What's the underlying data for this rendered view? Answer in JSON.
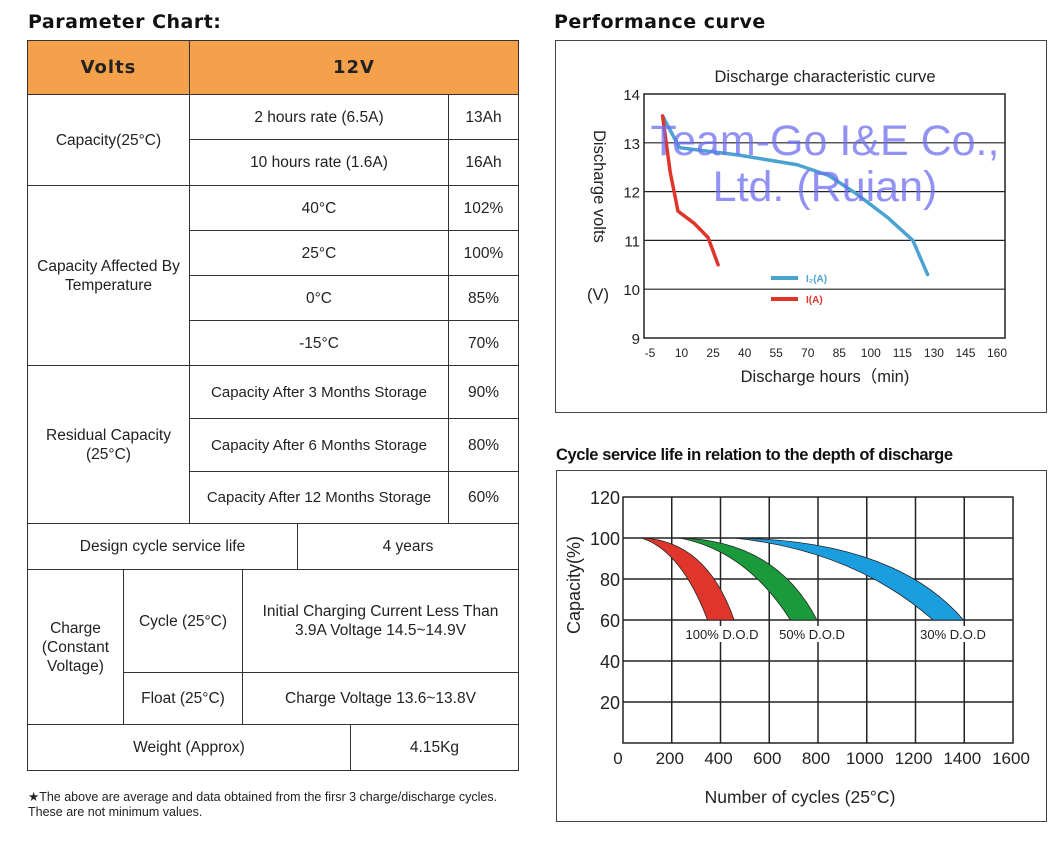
{
  "parameter_chart": {
    "title": "Parameter Chart:",
    "header": {
      "label": "Volts",
      "value": "12V"
    },
    "capacity": {
      "label": "Capacity(25°C)",
      "rows": [
        {
          "name": "2 hours rate (6.5A)",
          "value": "13Ah"
        },
        {
          "name": "10 hours rate (1.6A)",
          "value": "16Ah"
        }
      ]
    },
    "temperature": {
      "label": "Capacity Affected By Temperature",
      "rows": [
        {
          "name": "40°C",
          "value": "102%"
        },
        {
          "name": "25°C",
          "value": "100%"
        },
        {
          "name": "0°C",
          "value": "85%"
        },
        {
          "name": "-15°C",
          "value": "70%"
        }
      ]
    },
    "residual": {
      "label": "Residual Capacity (25°C)",
      "rows": [
        {
          "name": "Capacity After 3 Months Storage",
          "value": "90%"
        },
        {
          "name": "Capacity After 6 Months Storage",
          "value": "80%"
        },
        {
          "name": "Capacity After 12 Months Storage",
          "value": "60%"
        }
      ]
    },
    "design_life": {
      "label": "Design cycle service life",
      "value": "4 years"
    },
    "charge": {
      "label": "Charge (Constant Voltage)",
      "cycle": {
        "label": "Cycle (25°C)",
        "value": "Initial Charging Current Less Than 3.9A Voltage 14.5~14.9V"
      },
      "float": {
        "label": "Float (25°C)",
        "value": "Charge Voltage 13.6~13.8V"
      }
    },
    "weight": {
      "label": "Weight (Approx)",
      "value": "4.15Kg"
    },
    "footnote": "★The above are average and data obtained from the firsr 3 charge/discharge cycles. These are not minimum values."
  },
  "watermark": "Team-Go I&E Co., Ltd. (Ruian)",
  "performance": {
    "title": "Performance curve"
  },
  "cycle_section": {
    "title": "Cycle service life in relation to the depth of discharge"
  },
  "colors": {
    "header": "#f5a04a",
    "blue": "#4aa3d0",
    "red": "#e0352b",
    "green": "#1a9a3a",
    "cyan": "#1a9ee0"
  },
  "chart_data": [
    {
      "type": "line",
      "title": "Discharge characteristic curve",
      "xlabel": "Discharge hours（min)",
      "ylabel": "Discharge volts",
      "yunit": "(V)",
      "xlim": [
        -5,
        160
      ],
      "ylim": [
        9,
        14
      ],
      "xticks": [
        "-5",
        "10",
        "25",
        "40",
        "55",
        "70",
        "85",
        "100",
        "115",
        "130",
        "145",
        "160"
      ],
      "yticks": [
        "14",
        "13",
        "12",
        "11",
        "10",
        "9"
      ],
      "grid": "horizontal",
      "legend": "center",
      "series": [
        {
          "name": "I₂(A)",
          "color": "#4aa3d0",
          "x": [
            1,
            9,
            37,
            65,
            80,
            93,
            108,
            120,
            127
          ],
          "y": [
            13.55,
            12.9,
            12.75,
            12.55,
            12.33,
            11.96,
            11.47,
            11.0,
            10.3
          ]
        },
        {
          "name": "I(A)",
          "color": "#e0352b",
          "x": [
            1,
            4.6,
            8.3,
            16,
            22.6,
            27.4
          ],
          "y": [
            13.55,
            12.4,
            11.6,
            11.35,
            11.06,
            10.5
          ]
        }
      ]
    },
    {
      "type": "area",
      "xlabel": "Number of cycles (25°C)",
      "ylabel": "Capacity(%)",
      "xlim": [
        0,
        1600
      ],
      "ylim": [
        0,
        120
      ],
      "xticks": [
        "0",
        "200",
        "400",
        "600",
        "800",
        "1000",
        "1200",
        "1400",
        "1600"
      ],
      "yticks": [
        "120",
        "100",
        "80",
        "60",
        "40",
        "20"
      ],
      "grid": "both",
      "series": [
        {
          "name": "100% D.O.D",
          "color": "#e0352b",
          "start": [
            75,
            100
          ],
          "end_range_at_60": [
            347,
            456
          ]
        },
        {
          "name": "50% D.O.D",
          "color": "#1a9a3a",
          "start": [
            231,
            100
          ],
          "end_range_at_60": [
            687,
            796
          ]
        },
        {
          "name": "30% D.O.D",
          "color": "#1a9ee0",
          "start": [
            456,
            100
          ],
          "end_range_at_60": [
            1272,
            1397
          ]
        }
      ]
    }
  ]
}
